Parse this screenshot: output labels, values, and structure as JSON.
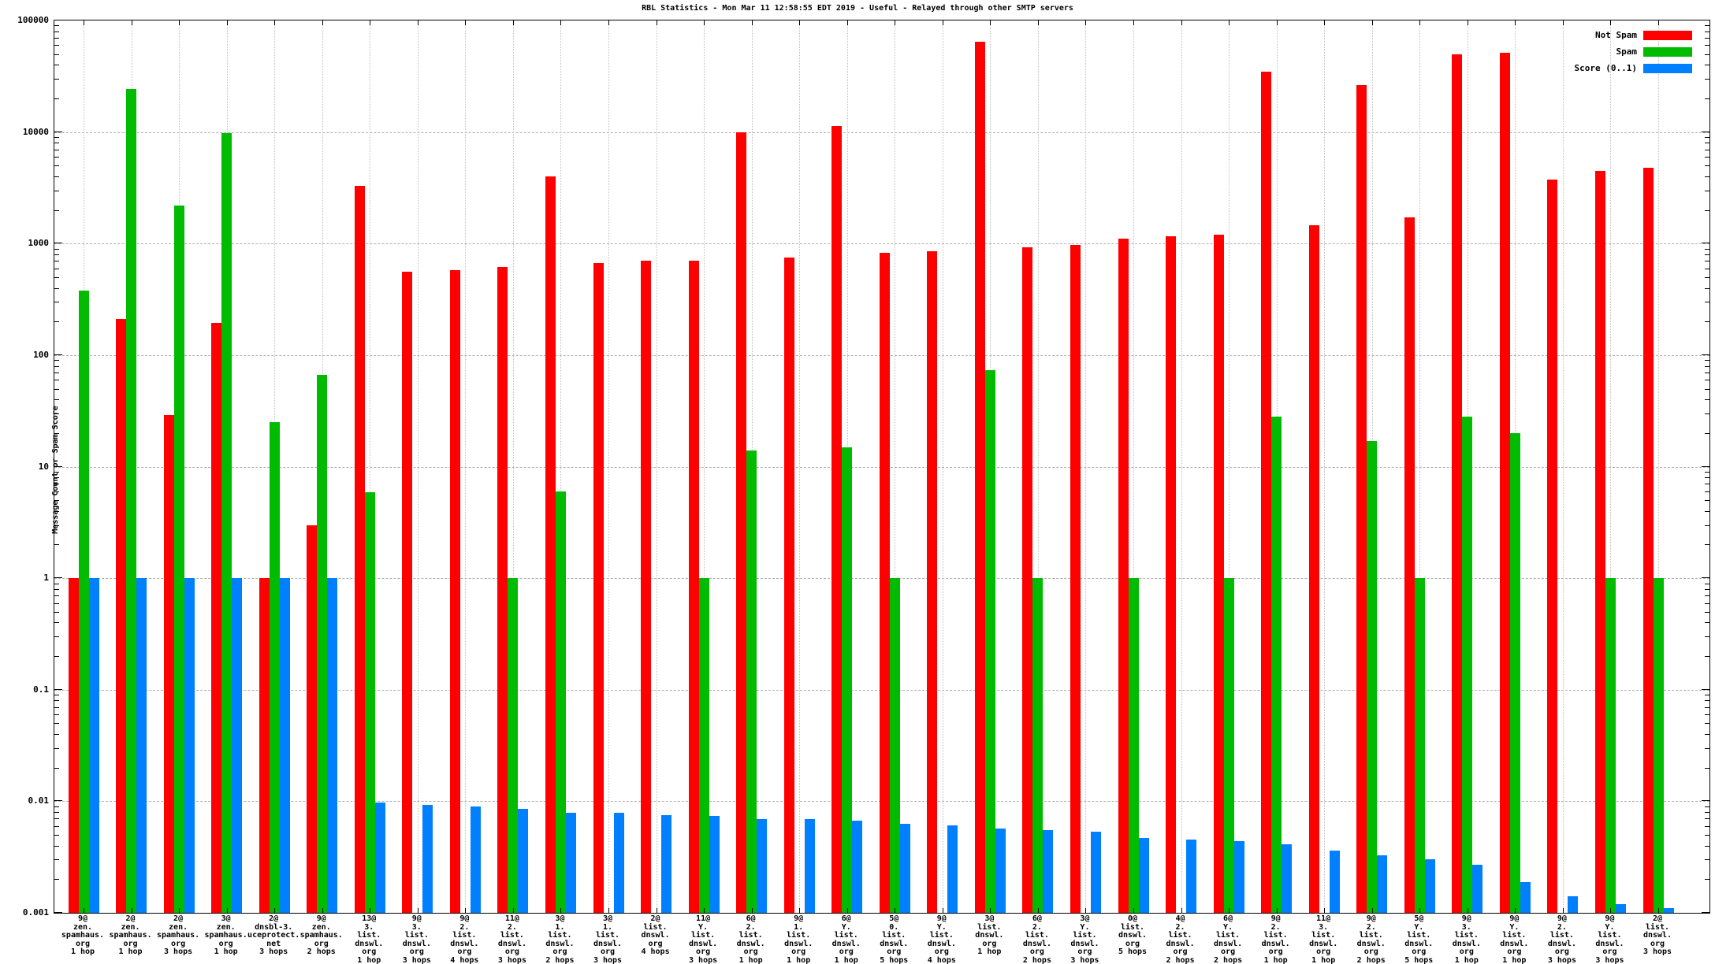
{
  "title": "RBL Statistics - Mon Mar 11 12:58:55 EDT 2019 - Useful - Relayed through other SMTP servers",
  "y_axis": {
    "label": "Message Count or Spam Score",
    "tick_labels": [
      "100000",
      "10000",
      "1000",
      "100",
      "10",
      "1",
      "0.1",
      "0.01",
      "0.001"
    ]
  },
  "legend": {
    "items": [
      {
        "label": "Not Spam",
        "color": "#ff0000"
      },
      {
        "label": "Spam",
        "color": "#00bb00"
      },
      {
        "label": "Score (0..1)",
        "color": "#0080ff"
      }
    ]
  },
  "chart_data": {
    "type": "bar",
    "y_scale": "log10",
    "ylim": [
      0.001,
      100000
    ],
    "grid": true,
    "legend_position": "top-right",
    "title": "RBL Statistics - Mon Mar 11 12:58:55 EDT 2019 - Useful - Relayed through other SMTP servers",
    "ylabel": "Message Count or Spam Score",
    "series_order": [
      "not_spam",
      "spam",
      "score"
    ],
    "series_colors": {
      "not_spam": "#ff0000",
      "spam": "#00bb00",
      "score": "#0080ff"
    },
    "groups": [
      {
        "label_lines": [
          "9@",
          "zen.",
          "spamhaus.",
          "org",
          "1 hop"
        ],
        "not_spam": 1,
        "spam": 380,
        "score": 1.0
      },
      {
        "label_lines": [
          "2@",
          "zen.",
          "spamhaus.",
          "org",
          "1 hop"
        ],
        "not_spam": 210,
        "spam": 24500,
        "score": 1.0
      },
      {
        "label_lines": [
          "2@",
          "zen.",
          "spamhaus.",
          "org",
          "3 hops"
        ],
        "not_spam": 29,
        "spam": 2200,
        "score": 1.0
      },
      {
        "label_lines": [
          "3@",
          "zen.",
          "spamhaus.",
          "org",
          "1 hop"
        ],
        "not_spam": 195,
        "spam": 9700,
        "score": 1.0
      },
      {
        "label_lines": [
          "2@",
          "dnsbl-3.",
          "uceprotect.",
          "net",
          "3 hops"
        ],
        "not_spam": 1,
        "spam": 25,
        "score": 1.0
      },
      {
        "label_lines": [
          "9@",
          "zen.",
          "spamhaus.",
          "org",
          "2 hops"
        ],
        "not_spam": 3,
        "spam": 67,
        "score": 1.0
      },
      {
        "label_lines": [
          "13@",
          "3.",
          "list.",
          "dnswl.",
          "org",
          "1 hop"
        ],
        "not_spam": 3300,
        "spam": 5.9,
        "score": 0.0097
      },
      {
        "label_lines": [
          "9@",
          "3.",
          "list.",
          "dnswl.",
          "org",
          "3 hops"
        ],
        "not_spam": 560,
        "spam": 0,
        "score": 0.0093
      },
      {
        "label_lines": [
          "9@",
          "2.",
          "list.",
          "dnswl.",
          "org",
          "4 hops"
        ],
        "not_spam": 575,
        "spam": 0,
        "score": 0.009
      },
      {
        "label_lines": [
          "11@",
          "2.",
          "list.",
          "dnswl.",
          "org",
          "3 hops"
        ],
        "not_spam": 620,
        "spam": 1,
        "score": 0.0085
      },
      {
        "label_lines": [
          "3@",
          "1.",
          "list.",
          "dnswl.",
          "org",
          "2 hops"
        ],
        "not_spam": 4000,
        "spam": 6,
        "score": 0.0079
      },
      {
        "label_lines": [
          "3@",
          "1.",
          "list.",
          "dnswl.",
          "org",
          "3 hops"
        ],
        "not_spam": 665,
        "spam": 0,
        "score": 0.0079
      },
      {
        "label_lines": [
          "2@",
          "list.",
          "dnswl.",
          "org",
          "4 hops"
        ],
        "not_spam": 700,
        "spam": 0,
        "score": 0.0075
      },
      {
        "label_lines": [
          "11@",
          "Y.",
          "list.",
          "dnswl.",
          "org",
          "3 hops"
        ],
        "not_spam": 705,
        "spam": 1,
        "score": 0.0074
      },
      {
        "label_lines": [
          "6@",
          "2.",
          "list.",
          "dnswl.",
          "org",
          "1 hop"
        ],
        "not_spam": 10000,
        "spam": 14,
        "score": 0.0069
      },
      {
        "label_lines": [
          "9@",
          "1.",
          "list.",
          "dnswl.",
          "org",
          "1 hop"
        ],
        "not_spam": 745,
        "spam": 0,
        "score": 0.0069
      },
      {
        "label_lines": [
          "6@",
          "Y.",
          "list.",
          "dnswl.",
          "org",
          "1 hop"
        ],
        "not_spam": 11300,
        "spam": 15,
        "score": 0.0067
      },
      {
        "label_lines": [
          "5@",
          "0.",
          "list.",
          "dnswl.",
          "org",
          "5 hops"
        ],
        "not_spam": 820,
        "spam": 1,
        "score": 0.0063
      },
      {
        "label_lines": [
          "9@",
          "Y.",
          "list.",
          "dnswl.",
          "org",
          "4 hops"
        ],
        "not_spam": 855,
        "spam": 0,
        "score": 0.0061
      },
      {
        "label_lines": [
          "3@",
          "list.",
          "dnswl.",
          "org",
          "1 hop"
        ],
        "not_spam": 64000,
        "spam": 73,
        "score": 0.0057
      },
      {
        "label_lines": [
          "6@",
          "2.",
          "list.",
          "dnswl.",
          "org",
          "2 hops"
        ],
        "not_spam": 920,
        "spam": 1,
        "score": 0.0055
      },
      {
        "label_lines": [
          "3@",
          "Y.",
          "list.",
          "dnswl.",
          "org",
          "3 hops"
        ],
        "not_spam": 970,
        "spam": 0,
        "score": 0.0053
      },
      {
        "label_lines": [
          "0@",
          "list.",
          "dnswl.",
          "org",
          "5 hops"
        ],
        "not_spam": 1100,
        "spam": 1,
        "score": 0.0047
      },
      {
        "label_lines": [
          "4@",
          "2.",
          "list.",
          "dnswl.",
          "org",
          "2 hops"
        ],
        "not_spam": 1170,
        "spam": 0,
        "score": 0.0045
      },
      {
        "label_lines": [
          "6@",
          "Y.",
          "list.",
          "dnswl.",
          "org",
          "2 hops"
        ],
        "not_spam": 1210,
        "spam": 1,
        "score": 0.0044
      },
      {
        "label_lines": [
          "9@",
          "2.",
          "list.",
          "dnswl.",
          "org",
          "1 hop"
        ],
        "not_spam": 35000,
        "spam": 28,
        "score": 0.0041
      },
      {
        "label_lines": [
          "11@",
          "3.",
          "list.",
          "dnswl.",
          "org",
          "1 hop"
        ],
        "not_spam": 1460,
        "spam": 0,
        "score": 0.0036
      },
      {
        "label_lines": [
          "9@",
          "2.",
          "list.",
          "dnswl.",
          "org",
          "2 hops"
        ],
        "not_spam": 26500,
        "spam": 17,
        "score": 0.0033
      },
      {
        "label_lines": [
          "5@",
          "Y.",
          "list.",
          "dnswl.",
          "org",
          "5 hops"
        ],
        "not_spam": 1710,
        "spam": 1,
        "score": 0.003
      },
      {
        "label_lines": [
          "9@",
          "3.",
          "list.",
          "dnswl.",
          "org",
          "1 hop"
        ],
        "not_spam": 50000,
        "spam": 28,
        "score": 0.0027
      },
      {
        "label_lines": [
          "9@",
          "Y.",
          "list.",
          "dnswl.",
          "org",
          "1 hop"
        ],
        "not_spam": 51500,
        "spam": 20,
        "score": 0.0019
      },
      {
        "label_lines": [
          "9@",
          "2.",
          "list.",
          "dnswl.",
          "org",
          "3 hops"
        ],
        "not_spam": 3720,
        "spam": 0,
        "score": 0.0014
      },
      {
        "label_lines": [
          "9@",
          "Y.",
          "list.",
          "dnswl.",
          "org",
          "3 hops"
        ],
        "not_spam": 4470,
        "spam": 1,
        "score": 0.0012
      },
      {
        "label_lines": [
          "2@",
          "list.",
          "dnswl.",
          "org",
          "3 hops"
        ],
        "not_spam": 4790,
        "spam": 1,
        "score": 0.0011
      }
    ]
  }
}
